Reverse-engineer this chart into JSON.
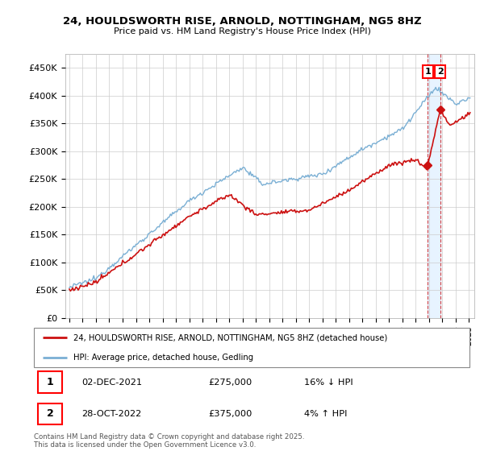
{
  "title": "24, HOULDSWORTH RISE, ARNOLD, NOTTINGHAM, NG5 8HZ",
  "subtitle": "Price paid vs. HM Land Registry's House Price Index (HPI)",
  "ylim": [
    0,
    475000
  ],
  "yticks": [
    0,
    50000,
    100000,
    150000,
    200000,
    250000,
    300000,
    350000,
    400000,
    450000
  ],
  "ytick_labels": [
    "£0",
    "£50K",
    "£100K",
    "£150K",
    "£200K",
    "£250K",
    "£300K",
    "£350K",
    "£400K",
    "£450K"
  ],
  "hpi_color": "#7aafd4",
  "price_color": "#cc1111",
  "shade_color": "#ddeeff",
  "background_color": "#ffffff",
  "grid_color": "#cccccc",
  "legend_label_price": "24, HOULDSWORTH RISE, ARNOLD, NOTTINGHAM, NG5 8HZ (detached house)",
  "legend_label_hpi": "HPI: Average price, detached house, Gedling",
  "annotation1_label": "1",
  "annotation1_date": "02-DEC-2021",
  "annotation1_price": "£275,000",
  "annotation1_change": "16% ↓ HPI",
  "annotation2_label": "2",
  "annotation2_date": "28-OCT-2022",
  "annotation2_price": "£375,000",
  "annotation2_change": "4% ↑ HPI",
  "footer": "Contains HM Land Registry data © Crown copyright and database right 2025.\nThis data is licensed under the Open Government Licence v3.0.",
  "sale1_year": 2021.917,
  "sale1_price": 275000,
  "sale2_year": 2022.833,
  "sale2_price": 375000
}
